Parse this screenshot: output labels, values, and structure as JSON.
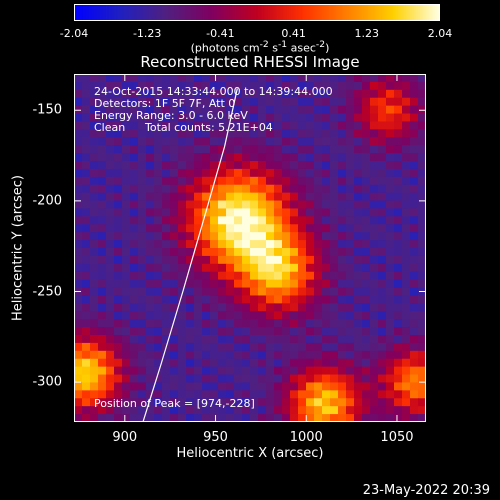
{
  "colorbar": {
    "ticks": [
      "-2.04",
      "-1.23",
      "-0.41",
      "0.41",
      "1.23",
      "2.04"
    ],
    "units_html": "(photons cm<sup>-2</sup> s<sup>-1</sup> asec<sup>-2</sup>)",
    "range": [
      -2.04,
      2.04
    ],
    "colormap": [
      "#0000ff",
      "#2020c0",
      "#502080",
      "#800060",
      "#c00020",
      "#ff3000",
      "#ff8000",
      "#ffd000",
      "#ffffe0"
    ]
  },
  "title": "Reconstructed RHESSI Image",
  "annotations": {
    "time_range": "24-Oct-2015 14:33:44.000 to 14:39:44.000",
    "detectors": "Detectors: 1F 5F 7F, Att 0",
    "energy": "Energy Range: 3.0 - 6.0 keV",
    "algorithm": "Clean",
    "counts": "Total counts: 5.21E+04",
    "peak": "Position of Peak = [974,-228]"
  },
  "chart_data": {
    "type": "heatmap",
    "title": "Reconstructed RHESSI Image",
    "xlabel": "Heliocentric X (arcsec)",
    "ylabel": "Heliocentric Y (arcsec)",
    "xlim": [
      872,
      1066
    ],
    "ylim": [
      -322,
      -130
    ],
    "xticks": [
      900,
      950,
      1000,
      1050
    ],
    "yticks": [
      -150,
      -200,
      -250,
      -300
    ],
    "sources": [
      {
        "x": 963,
        "y": -210,
        "amplitude": 2.04,
        "width": 28
      },
      {
        "x": 985,
        "y": -240,
        "amplitude": 1.2,
        "width": 22
      },
      {
        "x": 878,
        "y": -295,
        "amplitude": 1.6,
        "width": 20
      },
      {
        "x": 1010,
        "y": -312,
        "amplitude": 1.5,
        "width": 20
      },
      {
        "x": 1060,
        "y": -300,
        "amplitude": 1.0,
        "width": 18
      },
      {
        "x": 1045,
        "y": -150,
        "amplitude": 0.5,
        "width": 18
      }
    ],
    "limb_curve": {
      "x": [
        910,
        920,
        932,
        945,
        955,
        962
      ],
      "y": [
        -322,
        -290,
        -250,
        -205,
        -170,
        -138
      ]
    },
    "peak": {
      "x": 974,
      "y": -228
    }
  },
  "footer": "23-May-2022 20:39"
}
